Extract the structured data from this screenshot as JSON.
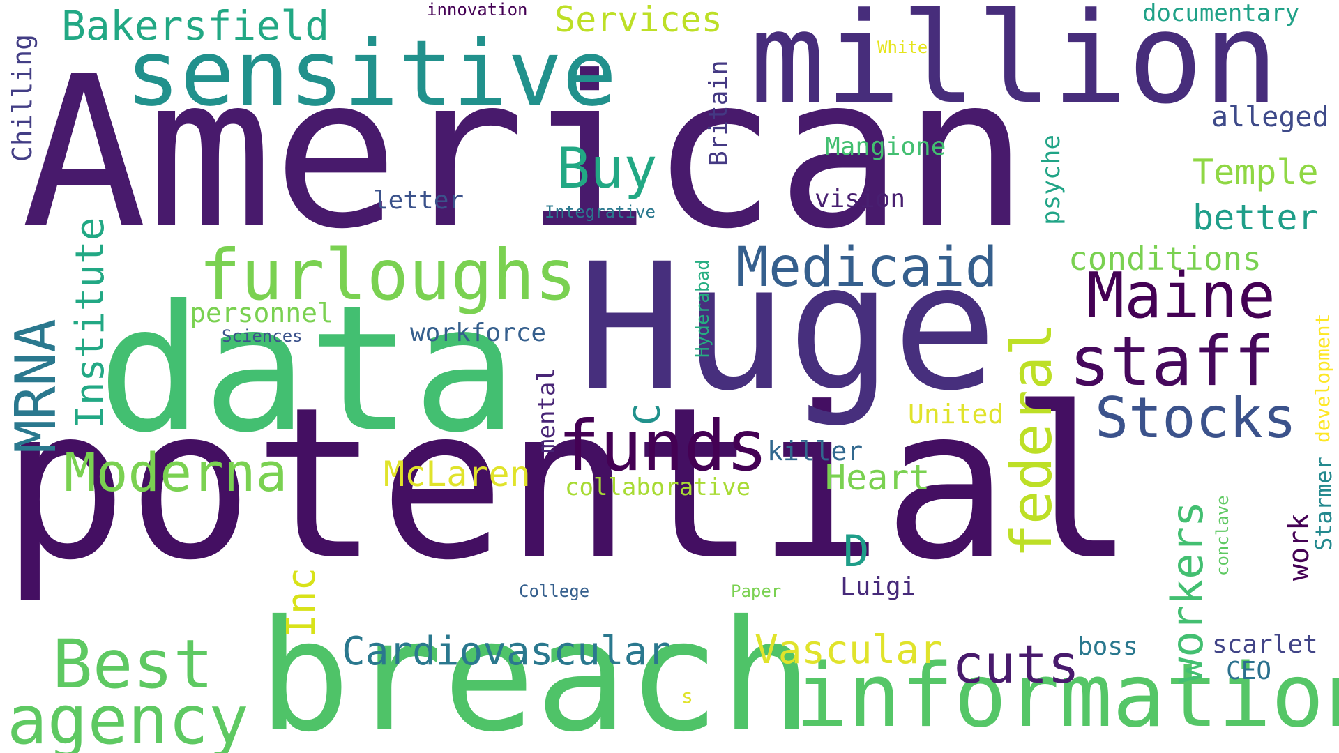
{
  "word_cloud": {
    "background": "#ffffff",
    "palette": {
      "deep_purple": "#440154",
      "indigo": "#481a6c",
      "violet_blue": "#472f7d",
      "slate_blue": "#414487",
      "steel_blue": "#355f8d",
      "teal_blue": "#2a788e",
      "teal": "#21918c",
      "sea_green": "#22a884",
      "emerald": "#43bf71",
      "green": "#5ec962",
      "lime": "#7ad151",
      "yellow_green": "#bddf26",
      "yellow": "#e0e32b",
      "bright_yellow": "#fde725"
    },
    "words": [
      {
        "key": "american",
        "text": "American",
        "color": "#481a6c"
      },
      {
        "key": "potential",
        "text": "potential",
        "color": "#440f62"
      },
      {
        "key": "huge",
        "text": "Huge",
        "color": "#472f7d"
      },
      {
        "key": "data",
        "text": "data",
        "color": "#43bf71"
      },
      {
        "key": "breach",
        "text": "breach",
        "color": "#4fc368"
      },
      {
        "key": "million",
        "text": "million",
        "color": "#472d7b"
      },
      {
        "key": "sensitive",
        "text": "sensitive",
        "color": "#21918c"
      },
      {
        "key": "information",
        "text": "information",
        "color": "#55c667"
      },
      {
        "key": "funds",
        "text": "funds",
        "color": "#440154"
      },
      {
        "key": "furloughs",
        "text": "furloughs",
        "color": "#7ad151"
      },
      {
        "key": "staff",
        "text": "staff",
        "color": "#46085c"
      },
      {
        "key": "maine",
        "text": "Maine",
        "color": "#440154"
      },
      {
        "key": "medicaid",
        "text": "Medicaid",
        "color": "#355f8d"
      },
      {
        "key": "stocks",
        "text": "Stocks",
        "color": "#3b528b"
      },
      {
        "key": "best",
        "text": "Best",
        "color": "#5ec962"
      },
      {
        "key": "agency",
        "text": "agency",
        "color": "#5ec962"
      },
      {
        "key": "cuts",
        "text": "cuts",
        "color": "#481a6c"
      },
      {
        "key": "moderna",
        "text": "Moderna",
        "color": "#7ad151"
      },
      {
        "key": "buy",
        "text": "Buy",
        "color": "#22a884"
      },
      {
        "key": "federal",
        "text": "federal",
        "color": "#bddf26"
      },
      {
        "key": "mrna",
        "text": "MRNA",
        "color": "#2a788e"
      },
      {
        "key": "bakersfield",
        "text": "Bakersfield",
        "color": "#22a884"
      },
      {
        "key": "cardiovascular",
        "text": "Cardiovascular",
        "color": "#2a788e"
      },
      {
        "key": "vascular",
        "text": "Vascular",
        "color": "#e0e32b"
      },
      {
        "key": "workers",
        "text": "workers",
        "color": "#43bf71"
      },
      {
        "key": "institute",
        "text": "Institute",
        "color": "#22a884"
      },
      {
        "key": "inc",
        "text": "Inc",
        "color": "#d8e219"
      },
      {
        "key": "services",
        "text": "Services",
        "color": "#bddf26"
      },
      {
        "key": "c",
        "text": "C",
        "color": "#21918c"
      },
      {
        "key": "d",
        "text": "D",
        "color": "#1f9e89"
      },
      {
        "key": "mclaren",
        "text": "McLaren",
        "color": "#e0e32b"
      },
      {
        "key": "heart",
        "text": "Heart",
        "color": "#7ad151"
      },
      {
        "key": "temple",
        "text": "Temple",
        "color": "#8fd744"
      },
      {
        "key": "better",
        "text": "better",
        "color": "#1f9e89"
      },
      {
        "key": "conditions",
        "text": "conditions",
        "color": "#7ad151"
      },
      {
        "key": "alleged",
        "text": "alleged",
        "color": "#3e4a89"
      },
      {
        "key": "documentary",
        "text": "documentary",
        "color": "#1fa187"
      },
      {
        "key": "chilling",
        "text": "Chilling",
        "color": "#433e85"
      },
      {
        "key": "mangione",
        "text": "Mangione",
        "color": "#43bf71"
      },
      {
        "key": "letter",
        "text": "letter",
        "color": "#3b528b"
      },
      {
        "key": "vision",
        "text": "vision",
        "color": "#481f70"
      },
      {
        "key": "britain",
        "text": "Britain",
        "color": "#443983"
      },
      {
        "key": "personnel",
        "text": "personnel",
        "color": "#7ad151"
      },
      {
        "key": "workforce",
        "text": "workforce",
        "color": "#355f8d"
      },
      {
        "key": "killer",
        "text": "killer",
        "color": "#31688e"
      },
      {
        "key": "united",
        "text": "United",
        "color": "#e0e32b"
      },
      {
        "key": "collaborative",
        "text": "collaborative",
        "color": "#a8db34"
      },
      {
        "key": "luigi",
        "text": "Luigi",
        "color": "#472a7a"
      },
      {
        "key": "boss",
        "text": "boss",
        "color": "#2a788e"
      },
      {
        "key": "scarlet",
        "text": "scarlet",
        "color": "#414487"
      },
      {
        "key": "ceo",
        "text": "CEO",
        "color": "#2c718e"
      },
      {
        "key": "work",
        "text": "work",
        "color": "#440154"
      },
      {
        "key": "starmer",
        "text": "Starmer",
        "color": "#23898e"
      },
      {
        "key": "development",
        "text": "development",
        "color": "#fde725"
      },
      {
        "key": "psyche",
        "text": "psyche",
        "color": "#20a486"
      },
      {
        "key": "mental",
        "text": "mental",
        "color": "#482576"
      },
      {
        "key": "hyderabad",
        "text": "Hyderabad",
        "color": "#26ad81"
      },
      {
        "key": "conclave",
        "text": "conclave",
        "color": "#5ec962"
      },
      {
        "key": "innovation",
        "text": "innovation",
        "color": "#440154"
      },
      {
        "key": "white",
        "text": "White",
        "color": "#e5e419"
      },
      {
        "key": "integrative",
        "text": "Integrative",
        "color": "#2a788e"
      },
      {
        "key": "sciences",
        "text": "Sciences",
        "color": "#3b528b"
      },
      {
        "key": "college",
        "text": "College",
        "color": "#355f8d"
      },
      {
        "key": "paper",
        "text": "Paper",
        "color": "#7ad151"
      },
      {
        "key": "s",
        "text": "s",
        "color": "#e0e32b"
      }
    ]
  }
}
